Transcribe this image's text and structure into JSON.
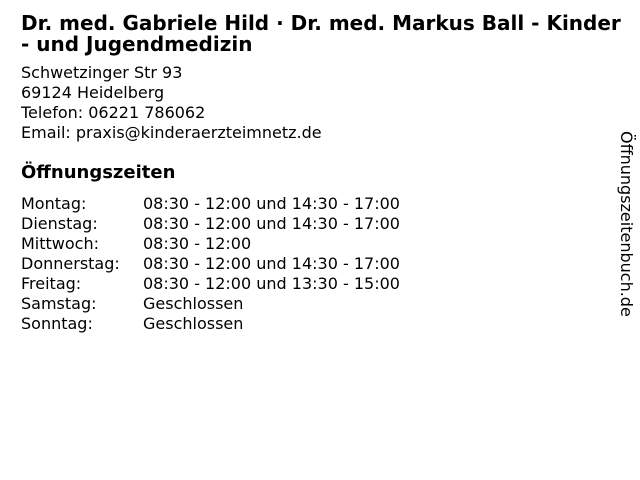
{
  "page": {
    "background_color": "#ffffff",
    "text_color": "#000000"
  },
  "practice": {
    "title": "Dr. med. Gabriele Hild · Dr. med. Markus Ball - Kinder - und Jugendmedizin",
    "address_lines": [
      "Schwetzinger Str 93",
      "69124 Heidelberg"
    ],
    "phone_line": "Telefon: 06221 786062",
    "email_line": "Email: praxis@kinderaerzteimnetz.de"
  },
  "opening_hours": {
    "heading": "Öffnungszeiten",
    "rows": [
      {
        "day": "Montag:",
        "hours": "08:30 - 12:00 und 14:30 - 17:00"
      },
      {
        "day": "Dienstag:",
        "hours": "08:30 - 12:00 und 14:30 - 17:00"
      },
      {
        "day": "Mittwoch:",
        "hours": "08:30 - 12:00"
      },
      {
        "day": "Donnerstag:",
        "hours": "08:30 - 12:00 und 14:30 - 17:00"
      },
      {
        "day": "Freitag:",
        "hours": "08:30 - 12:00 und 13:30 - 15:00"
      },
      {
        "day": "Samstag:",
        "hours": "Geschlossen"
      },
      {
        "day": "Sonntag:",
        "hours": "Geschlossen"
      }
    ]
  },
  "branding": {
    "vertical_tagline": "Öffnungszeitenbuch.de"
  }
}
